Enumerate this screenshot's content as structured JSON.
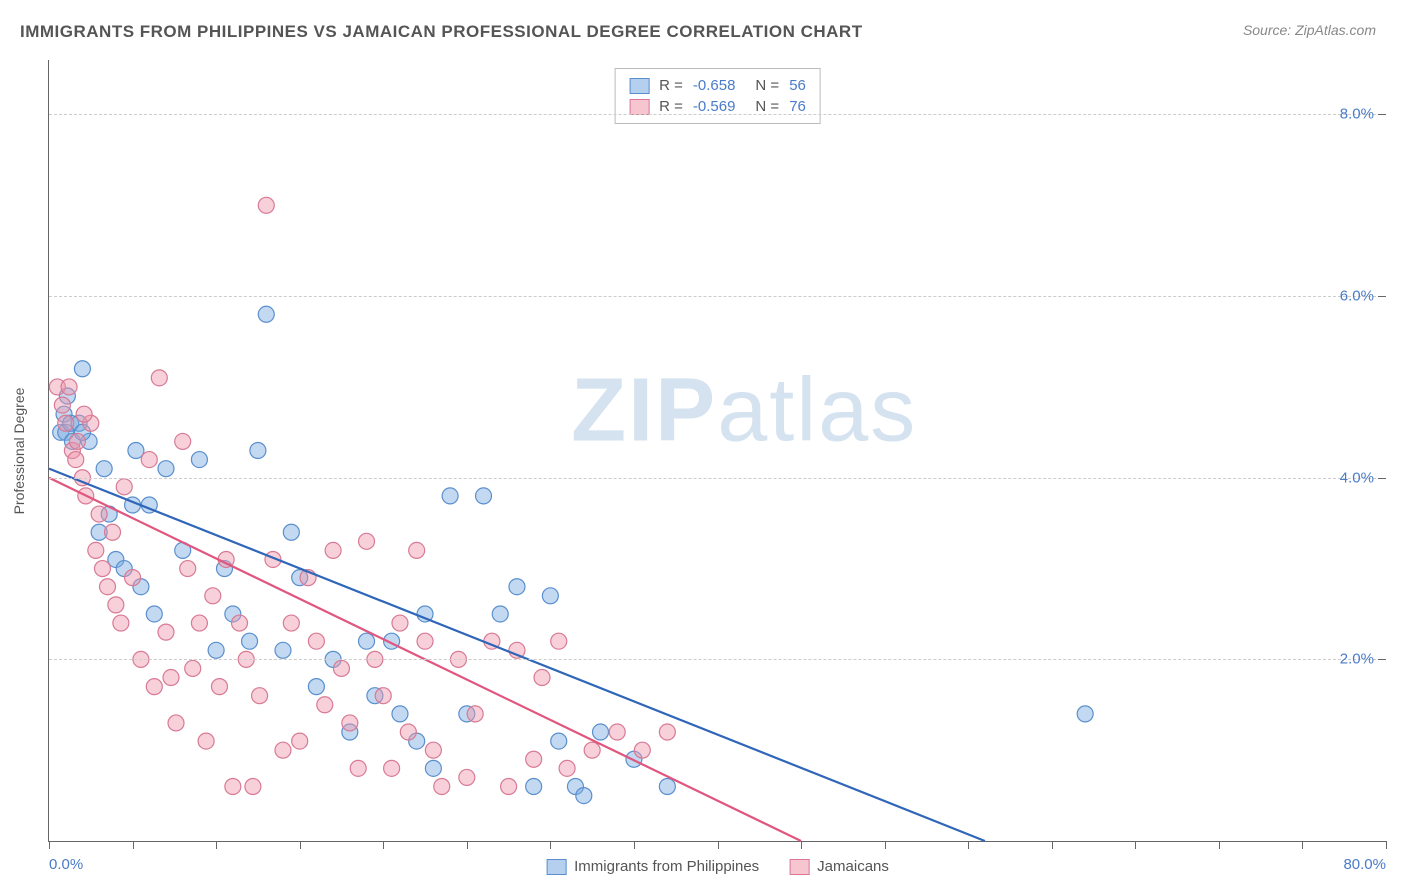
{
  "title": "IMMIGRANTS FROM PHILIPPINES VS JAMAICAN PROFESSIONAL DEGREE CORRELATION CHART",
  "source": "Source: ZipAtlas.com",
  "watermark": {
    "a": "ZIP",
    "b": "atlas"
  },
  "y_axis_title": "Professional Degree",
  "chart": {
    "type": "scatter",
    "xlim": [
      0,
      80
    ],
    "ylim": [
      0,
      8.6
    ],
    "xticks": [
      0,
      5,
      10,
      15,
      20,
      25,
      30,
      35,
      40,
      45,
      50,
      55,
      60,
      65,
      70,
      75,
      80
    ],
    "xticks_labeled": {
      "0": "0.0%",
      "80": "80.0%"
    },
    "yticks": [
      2,
      4,
      6,
      8
    ],
    "ytick_labels": [
      "2.0%",
      "4.0%",
      "6.0%",
      "8.0%"
    ],
    "grid_color": "#cccccc",
    "background_color": "#ffffff",
    "marker_radius": 8,
    "marker_stroke_width": 1.2,
    "line_width": 2.2,
    "series": [
      {
        "name": "Immigrants from Philippines",
        "color_fill": "rgba(120,170,225,0.45)",
        "color_stroke": "#5a8fce",
        "line_color": "#2f66b8",
        "R": "-0.658",
        "N": "56",
        "trend": {
          "x1": 0,
          "y1": 4.1,
          "x2": 56,
          "y2": 0
        },
        "points": [
          [
            0.7,
            4.5
          ],
          [
            0.9,
            4.7
          ],
          [
            1.0,
            4.5
          ],
          [
            1.1,
            4.9
          ],
          [
            1.3,
            4.6
          ],
          [
            1.4,
            4.4
          ],
          [
            1.8,
            4.6
          ],
          [
            2.0,
            5.2
          ],
          [
            2.4,
            4.4
          ],
          [
            3.0,
            3.4
          ],
          [
            3.3,
            4.1
          ],
          [
            3.6,
            3.6
          ],
          [
            4.0,
            3.1
          ],
          [
            4.5,
            3.0
          ],
          [
            5.0,
            3.7
          ],
          [
            5.2,
            4.3
          ],
          [
            5.5,
            2.8
          ],
          [
            6.0,
            3.7
          ],
          [
            6.3,
            2.5
          ],
          [
            7.0,
            4.1
          ],
          [
            8.0,
            3.2
          ],
          [
            9.0,
            4.2
          ],
          [
            10.0,
            2.1
          ],
          [
            10.5,
            3.0
          ],
          [
            11.0,
            2.5
          ],
          [
            12.0,
            2.2
          ],
          [
            12.5,
            4.3
          ],
          [
            13.0,
            5.8
          ],
          [
            14.0,
            2.1
          ],
          [
            14.5,
            3.4
          ],
          [
            15.0,
            2.9
          ],
          [
            16.0,
            1.7
          ],
          [
            17.0,
            2.0
          ],
          [
            18.0,
            1.2
          ],
          [
            19.0,
            2.2
          ],
          [
            19.5,
            1.6
          ],
          [
            20.5,
            2.2
          ],
          [
            21.0,
            1.4
          ],
          [
            22.0,
            1.1
          ],
          [
            22.5,
            2.5
          ],
          [
            23.0,
            0.8
          ],
          [
            24.0,
            3.8
          ],
          [
            25.0,
            1.4
          ],
          [
            26.0,
            3.8
          ],
          [
            27.0,
            2.5
          ],
          [
            28.0,
            2.8
          ],
          [
            29.0,
            0.6
          ],
          [
            30.0,
            2.7
          ],
          [
            30.5,
            1.1
          ],
          [
            31.5,
            0.6
          ],
          [
            32.0,
            0.5
          ],
          [
            33.0,
            1.2
          ],
          [
            35.0,
            0.9
          ],
          [
            37.0,
            0.6
          ],
          [
            62.0,
            1.4
          ],
          [
            2.0,
            4.5
          ]
        ]
      },
      {
        "name": "Jamaicans",
        "color_fill": "rgba(240,150,170,0.45)",
        "color_stroke": "#d87a95",
        "line_color": "#e0567e",
        "R": "-0.569",
        "N": "76",
        "trend": {
          "x1": 0,
          "y1": 4.0,
          "x2": 45,
          "y2": 0
        },
        "points": [
          [
            0.5,
            5.0
          ],
          [
            0.8,
            4.8
          ],
          [
            1.0,
            4.6
          ],
          [
            1.2,
            5.0
          ],
          [
            1.4,
            4.3
          ],
          [
            1.6,
            4.2
          ],
          [
            2.0,
            4.0
          ],
          [
            2.2,
            3.8
          ],
          [
            2.5,
            4.6
          ],
          [
            2.8,
            3.2
          ],
          [
            3.0,
            3.6
          ],
          [
            3.2,
            3.0
          ],
          [
            3.5,
            2.8
          ],
          [
            3.8,
            3.4
          ],
          [
            4.0,
            2.6
          ],
          [
            4.3,
            2.4
          ],
          [
            4.5,
            3.9
          ],
          [
            5.0,
            2.9
          ],
          [
            5.5,
            2.0
          ],
          [
            6.0,
            4.2
          ],
          [
            6.3,
            1.7
          ],
          [
            6.6,
            5.1
          ],
          [
            7.0,
            2.3
          ],
          [
            7.3,
            1.8
          ],
          [
            7.6,
            1.3
          ],
          [
            8.0,
            4.4
          ],
          [
            8.3,
            3.0
          ],
          [
            8.6,
            1.9
          ],
          [
            9.0,
            2.4
          ],
          [
            9.4,
            1.1
          ],
          [
            9.8,
            2.7
          ],
          [
            10.2,
            1.7
          ],
          [
            10.6,
            3.1
          ],
          [
            11.0,
            0.6
          ],
          [
            11.4,
            2.4
          ],
          [
            11.8,
            2.0
          ],
          [
            12.2,
            0.6
          ],
          [
            12.6,
            1.6
          ],
          [
            13.0,
            7.0
          ],
          [
            13.4,
            3.1
          ],
          [
            14.0,
            1.0
          ],
          [
            14.5,
            2.4
          ],
          [
            15.0,
            1.1
          ],
          [
            15.5,
            2.9
          ],
          [
            16.0,
            2.2
          ],
          [
            16.5,
            1.5
          ],
          [
            17.0,
            3.2
          ],
          [
            17.5,
            1.9
          ],
          [
            18.0,
            1.3
          ],
          [
            18.5,
            0.8
          ],
          [
            19.0,
            3.3
          ],
          [
            19.5,
            2.0
          ],
          [
            20.0,
            1.6
          ],
          [
            20.5,
            0.8
          ],
          [
            21.0,
            2.4
          ],
          [
            21.5,
            1.2
          ],
          [
            22.0,
            3.2
          ],
          [
            22.5,
            2.2
          ],
          [
            23.0,
            1.0
          ],
          [
            23.5,
            0.6
          ],
          [
            24.5,
            2.0
          ],
          [
            25.0,
            0.7
          ],
          [
            25.5,
            1.4
          ],
          [
            26.5,
            2.2
          ],
          [
            27.5,
            0.6
          ],
          [
            28.0,
            2.1
          ],
          [
            29.0,
            0.9
          ],
          [
            29.5,
            1.8
          ],
          [
            30.5,
            2.2
          ],
          [
            31.0,
            0.8
          ],
          [
            32.5,
            1.0
          ],
          [
            34.0,
            1.2
          ],
          [
            35.5,
            1.0
          ],
          [
            37.0,
            1.2
          ],
          [
            2.1,
            4.7
          ],
          [
            1.7,
            4.4
          ]
        ]
      }
    ]
  },
  "bottom_legend": [
    {
      "label": "Immigrants from Philippines",
      "swatch": "blue"
    },
    {
      "label": "Jamaicans",
      "swatch": "pink"
    }
  ]
}
